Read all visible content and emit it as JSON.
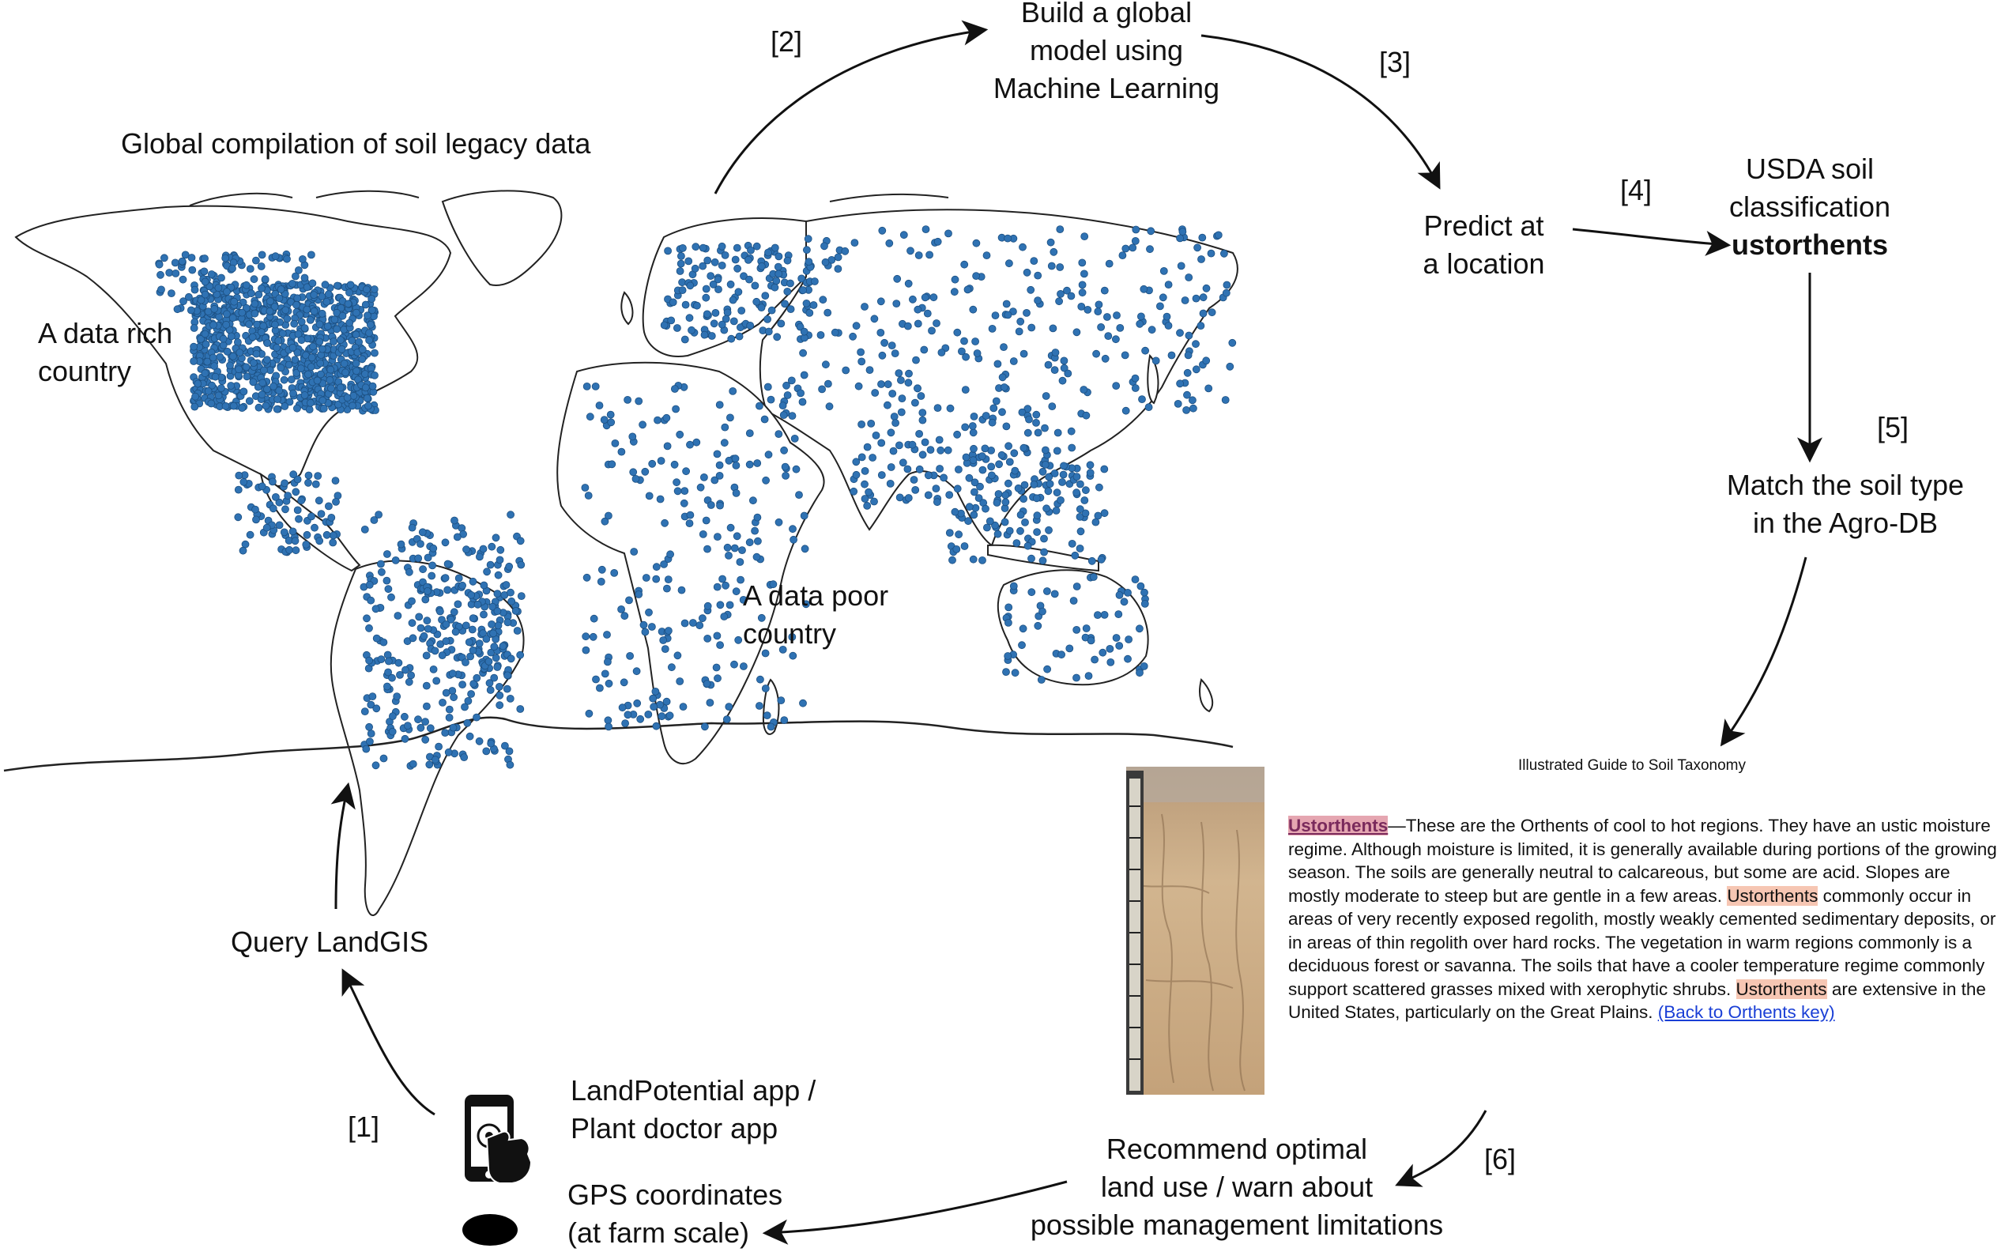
{
  "steps": [
    "[1]",
    "[2]",
    "[3]",
    "[4]",
    "[5]",
    "[6]"
  ],
  "nodes": {
    "map_title": "Global compilation of soil legacy data",
    "data_rich": [
      "A data rich",
      "country"
    ],
    "data_poor": [
      "A data poor",
      "country"
    ],
    "build_model": [
      "Build a global",
      "model using",
      "Machine Learning"
    ],
    "predict": [
      "Predict at",
      "a location"
    ],
    "usda": [
      "USDA soil",
      "classification"
    ],
    "usda_class": "ustorthents",
    "match": [
      "Match the soil type",
      "in the Agro-DB"
    ],
    "query": "Query LandGIS",
    "app": [
      "LandPotential app /",
      "Plant doctor app"
    ],
    "gps": [
      "GPS coordinates",
      "(at farm scale)"
    ],
    "recommend": [
      "Recommend optimal",
      "land use / warn about",
      "possible management limitations"
    ]
  },
  "guide": {
    "title": "Illustrated Guide to Soil Taxonomy",
    "term": "Ustorthents",
    "p1": "—These are the Orthents of cool to hot regions. They have an ustic moisture regime. Although moisture is limited, it is generally available during portions of the growing season. The soils are generally neutral to calcareous, but some are acid. Slopes are mostly moderate to steep but are gentle in a few areas. ",
    "term2": "Ustorthents",
    "p2": " commonly occur in areas of very recently exposed regolith, mostly weakly cemented sedimentary deposits, or in areas of thin regolith over hard rocks. The vegetation in warm regions commonly is a deciduous forest or savanna. The soils that have a cooler temperature regime commonly support scattered grasses mixed with xerophytic shrubs. ",
    "term3": "Ustorthents",
    "p3": " are extensive in the United States, particularly on the Great Plains. ",
    "link": "(Back to Orthents key)"
  },
  "colors": {
    "dots": "#2f72b3",
    "dots_edge": "#1c4f80",
    "soil": "#c8a67e",
    "arrow": "#111111"
  }
}
